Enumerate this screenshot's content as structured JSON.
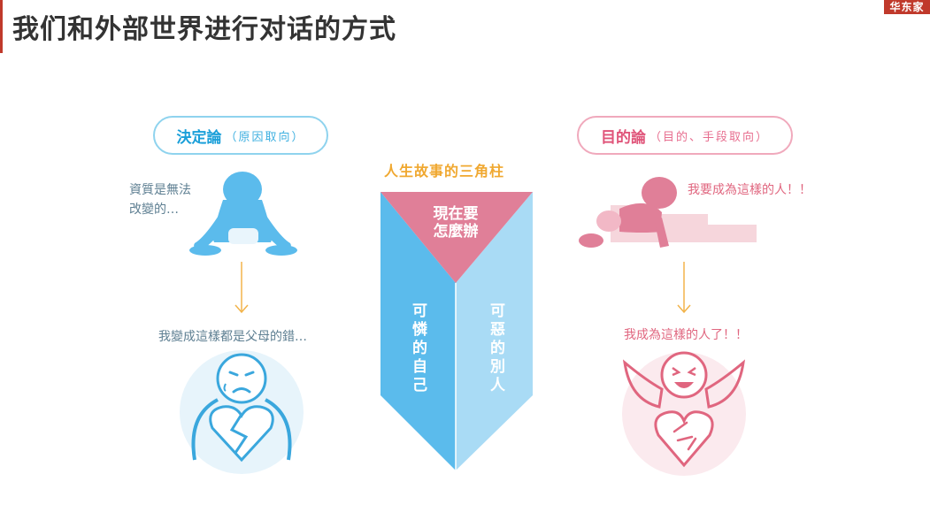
{
  "header": {
    "title": "我们和外部世界进行对话的方式",
    "brand_badge": "华东家"
  },
  "left_panel": {
    "pill": {
      "main": "決定論",
      "sub": "（原因取向）"
    },
    "quote_top": "資質是無法\n改變的…",
    "quote_bottom": "我變成這樣都是父母的錯…"
  },
  "right_panel": {
    "pill": {
      "main": "目的論",
      "sub": "（目的、手段取向）"
    },
    "quote_top": "我要成為這樣的人！！",
    "quote_bottom": "我成為這樣的人了！！"
  },
  "prism": {
    "title": "人生故事的三角柱",
    "top_face": "現在要\n怎麼辦",
    "left_face": "可憐的自己",
    "right_face": "可惡的別人"
  },
  "colors": {
    "blue_main": "#5bbbec",
    "blue_light": "#a9dbf5",
    "pink_main": "#e07f98",
    "pink_light": "#f6d6dc",
    "arrow": "#f2b34a"
  }
}
